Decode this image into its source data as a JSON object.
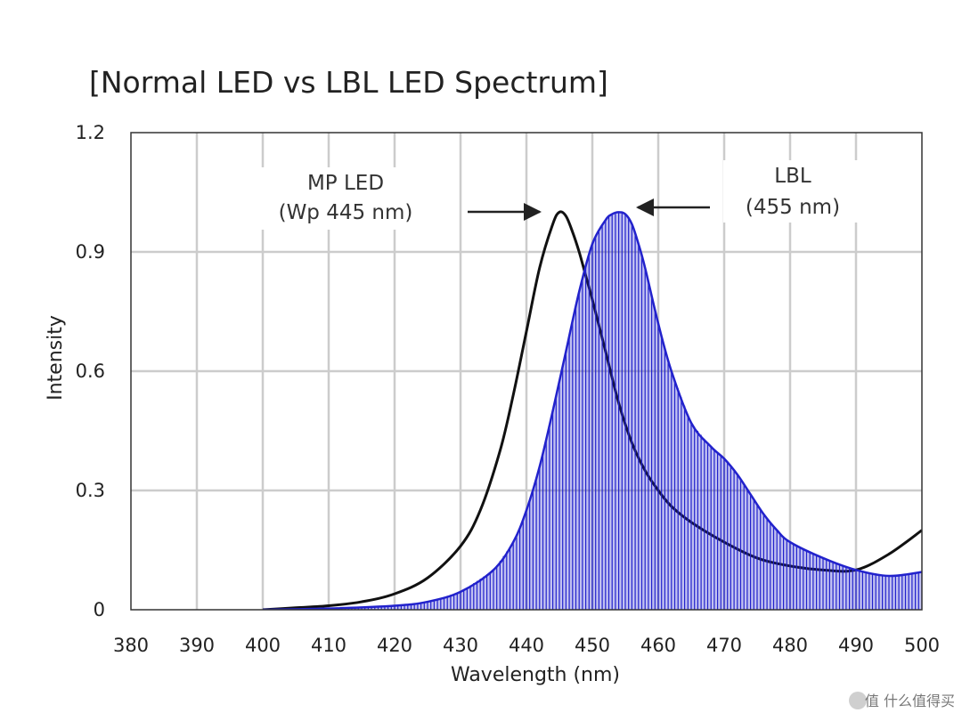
{
  "chart_data": {
    "type": "line",
    "title": "[Normal LED vs LBL LED Spectrum]",
    "xlabel": "Wavelength (nm)",
    "ylabel": "Intensity",
    "xlim": [
      380,
      500
    ],
    "ylim": [
      0,
      1.2
    ],
    "x_ticks": [
      380,
      390,
      400,
      410,
      420,
      430,
      440,
      450,
      460,
      470,
      480,
      490,
      500
    ],
    "y_ticks": [
      0,
      0.3,
      0.6,
      0.9,
      1.2
    ],
    "y_tick_labels": [
      "0",
      "0.3",
      "0.6",
      "0.9",
      "1.2"
    ],
    "grid": true,
    "series": [
      {
        "name": "MP LED",
        "color": "#111111",
        "filled": false,
        "x": [
          400,
          405,
          410,
          415,
          420,
          425,
          430,
          433,
          436,
          438,
          440,
          442,
          444,
          445,
          446,
          447,
          448,
          449,
          450,
          452,
          454,
          456,
          458,
          460,
          462,
          465,
          470,
          475,
          480,
          485,
          490,
          495,
          500
        ],
        "y": [
          0,
          0.005,
          0.01,
          0.02,
          0.04,
          0.08,
          0.16,
          0.25,
          0.4,
          0.54,
          0.7,
          0.86,
          0.97,
          1.0,
          0.99,
          0.95,
          0.9,
          0.84,
          0.78,
          0.65,
          0.52,
          0.42,
          0.35,
          0.3,
          0.26,
          0.22,
          0.17,
          0.13,
          0.11,
          0.1,
          0.1,
          0.14,
          0.2
        ]
      },
      {
        "name": "LBL",
        "color": "#2222cc",
        "filled": true,
        "x": [
          400,
          410,
          420,
          425,
          430,
          435,
          438,
          440,
          442,
          444,
          446,
          448,
          450,
          452,
          453,
          454,
          455,
          456,
          457,
          458,
          460,
          462,
          465,
          468,
          470,
          472,
          474,
          476,
          478,
          480,
          485,
          490,
          495,
          500
        ],
        "y": [
          0,
          0.003,
          0.01,
          0.02,
          0.045,
          0.1,
          0.17,
          0.25,
          0.36,
          0.5,
          0.65,
          0.8,
          0.92,
          0.98,
          0.995,
          1.0,
          0.995,
          0.97,
          0.92,
          0.86,
          0.72,
          0.6,
          0.47,
          0.41,
          0.38,
          0.34,
          0.29,
          0.24,
          0.2,
          0.17,
          0.13,
          0.1,
          0.085,
          0.095
        ]
      }
    ],
    "annotations": [
      {
        "lines": [
          "MP LED",
          "(Wp 445 nm)"
        ],
        "arrow": "right"
      },
      {
        "lines": [
          "LBL",
          "(455 nm)"
        ],
        "arrow": "left"
      }
    ]
  },
  "watermark": "值 什么值得买"
}
